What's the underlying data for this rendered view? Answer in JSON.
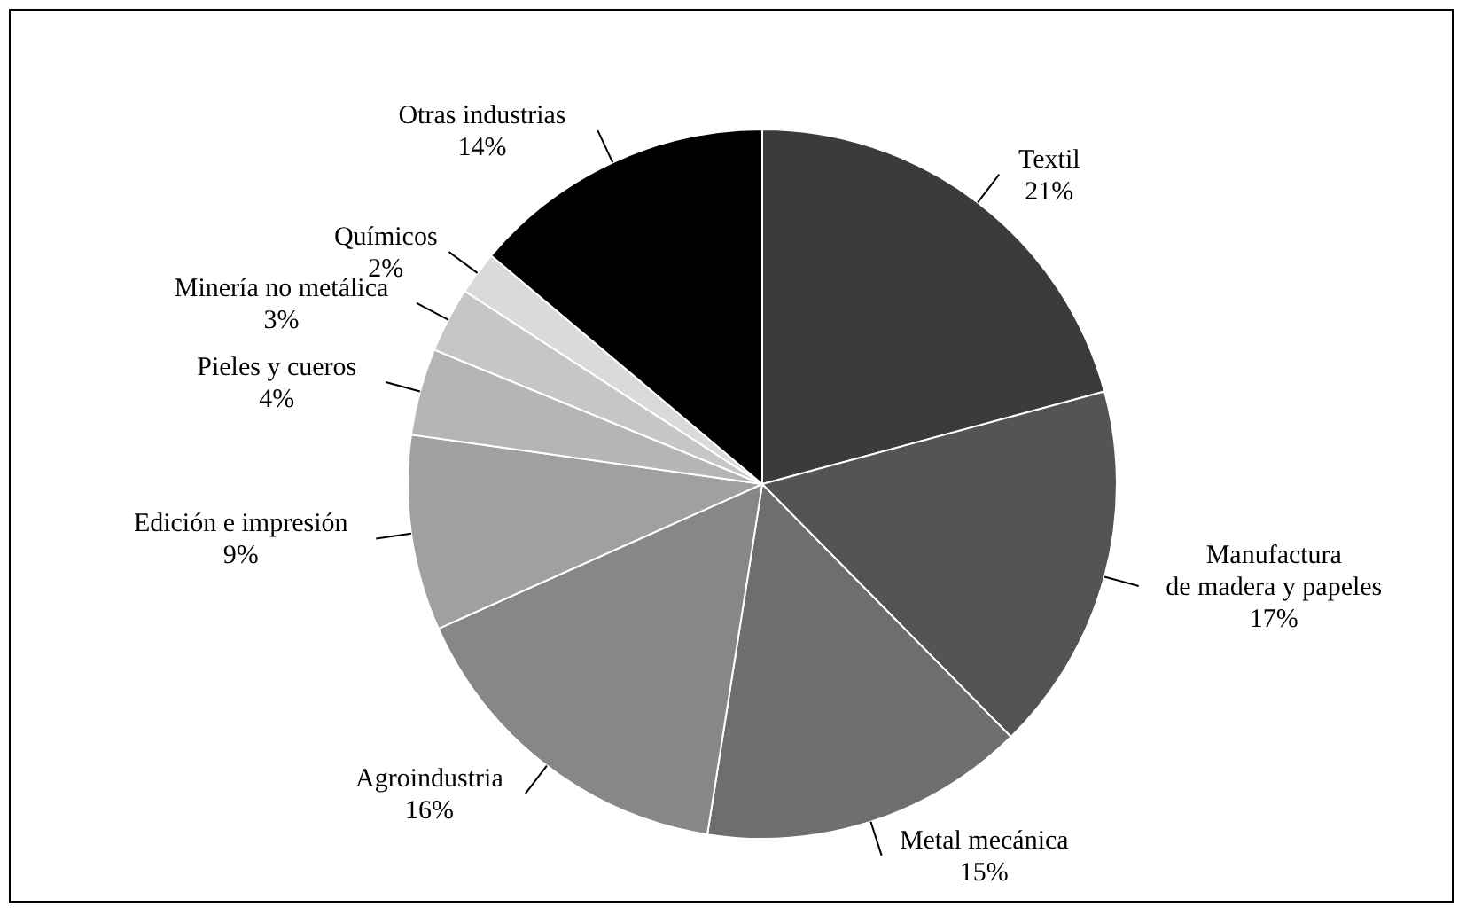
{
  "chart_data": {
    "type": "pie",
    "categories": [
      "Textil",
      "Manufactura de madera y papeles",
      "Metal mecánica",
      "Agroindustria",
      "Edición e impresión",
      "Pieles y cueros",
      "Minería no metálica",
      "Químicos",
      "Otras industrias"
    ],
    "values": [
      21,
      17,
      15,
      16,
      9,
      4,
      3,
      2,
      14
    ],
    "value_labels": [
      "21%",
      "17%",
      "15%",
      "16%",
      "9%",
      "4%",
      "3%",
      "2%",
      "14%"
    ],
    "colors": [
      "#3b3b3b",
      "#545454",
      "#6e6e6e",
      "#878787",
      "#a0a0a0",
      "#b5b5b5",
      "#c6c6c6",
      "#dadada",
      "#000000"
    ],
    "legend": false
  }
}
